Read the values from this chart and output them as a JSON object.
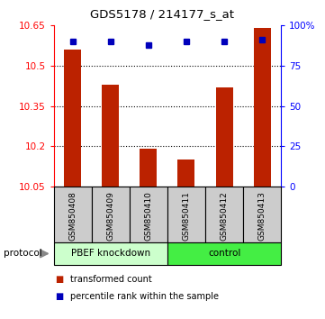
{
  "title": "GDS5178 / 214177_s_at",
  "categories": [
    "GSM850408",
    "GSM850409",
    "GSM850410",
    "GSM850411",
    "GSM850412",
    "GSM850413"
  ],
  "red_values": [
    10.56,
    10.43,
    10.19,
    10.15,
    10.42,
    10.64
  ],
  "blue_values": [
    90,
    90,
    88,
    90,
    90,
    91
  ],
  "ylim_left": [
    10.05,
    10.65
  ],
  "ylim_right": [
    0,
    100
  ],
  "yticks_left": [
    10.05,
    10.2,
    10.35,
    10.5,
    10.65
  ],
  "ytick_labels_left": [
    "10.05",
    "10.2",
    "10.35",
    "10.5",
    "10.65"
  ],
  "yticks_right": [
    0,
    25,
    50,
    75,
    100
  ],
  "ytick_labels_right": [
    "0",
    "25",
    "50",
    "75",
    "100%"
  ],
  "bar_color": "#bb2200",
  "dot_color": "#0000bb",
  "background_color": "#ffffff",
  "protocol_label": "protocol",
  "legend_items": [
    {
      "color": "#bb2200",
      "label": "transformed count"
    },
    {
      "color": "#0000bb",
      "label": "percentile rank within the sample"
    }
  ],
  "base_value": 10.05,
  "group_defs": [
    {
      "start": 0,
      "end": 2,
      "label": "PBEF knockdown",
      "color": "#ccffcc"
    },
    {
      "start": 3,
      "end": 5,
      "label": "control",
      "color": "#44ee44"
    }
  ],
  "sample_box_color": "#cccccc",
  "sample_box_edge": "#000000"
}
